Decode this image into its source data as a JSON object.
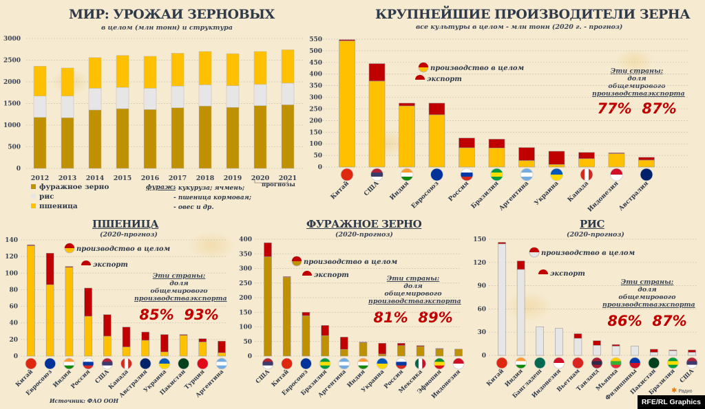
{
  "colors": {
    "feed": "#bf9000",
    "rice": "#e7e6e6",
    "wheat": "#ffc000",
    "export": "#c00000",
    "text": "#2f3a4a"
  },
  "callout": {
    "countries": "Эти страны:",
    "share": "доля",
    "world": "общемирового",
    "production": "производства",
    "export": "экспорта"
  },
  "legend": {
    "production": "производство в целом",
    "export": "экспорт"
  },
  "chart_data": [
    {
      "id": "world",
      "type": "bar",
      "stacked": true,
      "title": "МИР: УРОЖАИ ЗЕРНОВЫХ",
      "subtitle": "в целом (млн тонн) и структура",
      "categories": [
        "2012",
        "2013",
        "2014",
        "2015",
        "2016",
        "2017",
        "2018",
        "2019",
        "2020",
        "2021"
      ],
      "series": [
        {
          "name": "фуражное зерно",
          "color": "#bf9000",
          "values": [
            1180,
            1170,
            1350,
            1380,
            1360,
            1400,
            1440,
            1410,
            1450,
            1470
          ]
        },
        {
          "name": "рис",
          "color": "#e7e6e6",
          "values": [
            490,
            500,
            500,
            490,
            490,
            500,
            490,
            500,
            490,
            500
          ]
        },
        {
          "name": "пшеница",
          "color": "#ffc000",
          "values": [
            690,
            650,
            710,
            740,
            740,
            760,
            770,
            740,
            760,
            770
          ]
        }
      ],
      "ylim": [
        0,
        3000
      ],
      "yticks": [
        "0",
        "500",
        "1000",
        "1500",
        "2000",
        "2500",
        "3000"
      ],
      "grid": true,
      "forecast_label": "прогнозы",
      "note": {
        "label": "фураж:",
        "lines": [
          "- кукуруза; ячмень;",
          "- пшеница кормовая;",
          "- овес и др."
        ]
      }
    },
    {
      "id": "top",
      "type": "bar",
      "title": "КРУПНЕЙШИЕ ПРОИЗВОДИТЕЛИ ЗЕРНА",
      "subtitle": "все культуры в целом - млн тонн (2020 г. - прогноз)",
      "base_color": "#ffc000",
      "categories": [
        "Китай",
        "США",
        "Индия",
        "Евросоюз",
        "Россия",
        "Бразилия",
        "Аргентина",
        "Украина",
        "Канада",
        "Индонезия",
        "Австралия"
      ],
      "flags": [
        "flag-china",
        "flag-usa",
        "flag-india",
        "flag-eu",
        "flag-russia",
        "flag-brazil",
        "flag-argentina",
        "flag-ukraine",
        "flag-canada",
        "flag-indonesia",
        "flag-australia"
      ],
      "production": [
        548,
        445,
        275,
        275,
        125,
        120,
        84,
        68,
        63,
        61,
        42
      ],
      "export": [
        5,
        75,
        12,
        50,
        42,
        38,
        56,
        57,
        27,
        3,
        12
      ],
      "ylim": [
        0,
        550
      ],
      "yticks": [
        "0",
        "50",
        "100",
        "150",
        "200",
        "250",
        "300",
        "350",
        "400",
        "450",
        "500",
        "550"
      ],
      "share_production": "77%",
      "share_export": "87%"
    },
    {
      "id": "wheat",
      "type": "bar",
      "title": "ПШЕНИЦА",
      "subtitle": "(2020-прогноз)",
      "base_color": "#ffc000",
      "categories": [
        "Китай",
        "Евросоюз",
        "Индия",
        "Россия",
        "США",
        "Канада",
        "Австралия",
        "Украина",
        "Пакистан",
        "Турция",
        "Аргентина"
      ],
      "flags": [
        "flag-china",
        "flag-eu",
        "flag-india",
        "flag-russia",
        "flag-usa",
        "flag-canada",
        "flag-australia",
        "flag-ukraine",
        "flag-pakistan",
        "flag-turkey",
        "flag-argentina"
      ],
      "production": [
        134,
        124,
        108,
        82,
        50,
        35,
        29,
        26,
        26,
        21,
        18
      ],
      "export": [
        1,
        38,
        1,
        34,
        26,
        24,
        10,
        21,
        1,
        4,
        14
      ],
      "ylim": [
        0,
        140
      ],
      "yticks": [
        "0",
        "20",
        "40",
        "60",
        "80",
        "100",
        "120",
        "140"
      ],
      "share_production": "85%",
      "share_export": "93%",
      "source": "Источник: ФАО ООН"
    },
    {
      "id": "feed",
      "type": "bar",
      "title": "ФУРАЖНОЕ ЗЕРНО",
      "subtitle": "(2020-прогноз)",
      "base_color": "#bf9000",
      "categories": [
        "США",
        "Китай",
        "Евросоюз",
        "Бразилия",
        "Аргентина",
        "Индия",
        "Украина",
        "Россия",
        "Мексика",
        "Эфиопия",
        "Индонезия"
      ],
      "flags": [
        "flag-usa",
        "flag-china",
        "flag-eu",
        "flag-brazil",
        "flag-argentina",
        "flag-india",
        "flag-ukraine",
        "flag-russia",
        "flag-mexico",
        "flag-ethiopia",
        "flag-indonesia"
      ],
      "production": [
        388,
        272,
        150,
        105,
        65,
        48,
        44,
        44,
        36,
        26,
        24
      ],
      "export": [
        48,
        2,
        12,
        35,
        42,
        2,
        37,
        8,
        3,
        2,
        0
      ],
      "ylim": [
        0,
        400
      ],
      "yticks": [
        "0",
        "50",
        "100",
        "150",
        "200",
        "250",
        "300",
        "350",
        "400"
      ],
      "share_production": "81%",
      "share_export": "89%"
    },
    {
      "id": "rice",
      "type": "bar",
      "title": "РИС",
      "subtitle": "(2020-прогноз)",
      "base_color": "#e7e6e6",
      "categories": [
        "Китай",
        "Индия",
        "Бангладеш",
        "Индонезия",
        "Вьетнам",
        "Таиланд",
        "Мьянма",
        "Филиппины",
        "Пакистан",
        "Бразилия",
        "США"
      ],
      "flags": [
        "flag-china",
        "flag-india",
        "flag-bangladesh",
        "flag-indonesia",
        "flag-vietnam",
        "flag-thailand",
        "flag-myanmar",
        "flag-philippines",
        "flag-pakistan",
        "flag-brazil",
        "flag-usa"
      ],
      "production": [
        146,
        122,
        37,
        35,
        28,
        19,
        14,
        12,
        8,
        7,
        7
      ],
      "export": [
        2,
        11,
        0,
        0,
        6,
        6,
        2,
        0,
        4,
        1,
        3
      ],
      "ylim": [
        0,
        150
      ],
      "yticks": [
        "0",
        "30",
        "60",
        "90",
        "120",
        "150"
      ],
      "share_production": "86%",
      "share_export": "87%"
    }
  ],
  "credit": {
    "radio": "Радио",
    "graphics": "RFE/RL Graphics"
  }
}
